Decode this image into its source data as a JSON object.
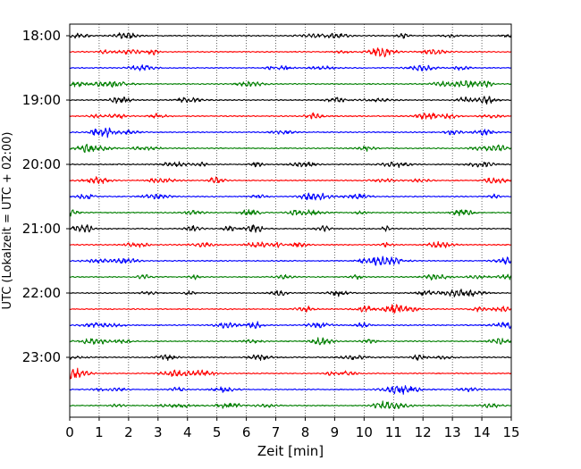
{
  "chart_data": {
    "type": "line",
    "title": "",
    "xlabel": "Zeit  [min]",
    "ylabel": "UTC (Lokalzeit = UTC + 02:00)",
    "xlim": [
      0,
      15
    ],
    "x_ticks": [
      "0",
      "1",
      "2",
      "3",
      "4",
      "5",
      "6",
      "7",
      "8",
      "9",
      "10",
      "11",
      "12",
      "13",
      "14",
      "15"
    ],
    "y_tick_labels": [
      "18:00",
      "19:00",
      "20:00",
      "21:00",
      "22:00",
      "23:00"
    ],
    "grid": "vertical-dotted",
    "legend": "none",
    "trace_colors": [
      "#000000",
      "#ff0000",
      "#0000ff",
      "#007f00"
    ],
    "series": [
      {
        "start": "18:00",
        "color": "#000000",
        "seed": 11
      },
      {
        "start": "18:15",
        "color": "#ff0000",
        "seed": 23
      },
      {
        "start": "18:30",
        "color": "#0000ff",
        "seed": 37
      },
      {
        "start": "18:45",
        "color": "#007f00",
        "seed": 41
      },
      {
        "start": "19:00",
        "color": "#000000",
        "seed": 53
      },
      {
        "start": "19:15",
        "color": "#ff0000",
        "seed": 67
      },
      {
        "start": "19:30",
        "color": "#0000ff",
        "seed": 71
      },
      {
        "start": "19:45",
        "color": "#007f00",
        "seed": 83
      },
      {
        "start": "20:00",
        "color": "#000000",
        "seed": 97
      },
      {
        "start": "20:15",
        "color": "#ff0000",
        "seed": 101
      },
      {
        "start": "20:30",
        "color": "#0000ff",
        "seed": 113
      },
      {
        "start": "20:45",
        "color": "#007f00",
        "seed": 127
      },
      {
        "start": "21:00",
        "color": "#000000",
        "seed": 131
      },
      {
        "start": "21:15",
        "color": "#ff0000",
        "seed": 149
      },
      {
        "start": "21:30",
        "color": "#0000ff",
        "seed": 151
      },
      {
        "start": "21:45",
        "color": "#007f00",
        "seed": 163
      },
      {
        "start": "22:00",
        "color": "#000000",
        "seed": 173
      },
      {
        "start": "22:15",
        "color": "#ff0000",
        "seed": 181
      },
      {
        "start": "22:30",
        "color": "#0000ff",
        "seed": 191
      },
      {
        "start": "22:45",
        "color": "#007f00",
        "seed": 199
      },
      {
        "start": "23:00",
        "color": "#000000",
        "seed": 211
      },
      {
        "start": "23:15",
        "color": "#ff0000",
        "seed": 223
      },
      {
        "start": "23:30",
        "color": "#0000ff",
        "seed": 227
      },
      {
        "start": "23:45",
        "color": "#007f00",
        "seed": 239
      }
    ]
  }
}
